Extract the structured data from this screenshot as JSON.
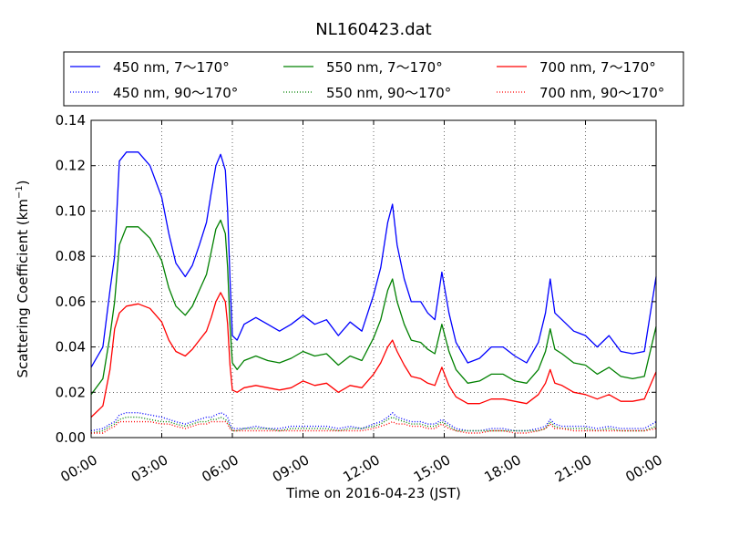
{
  "chart_data": {
    "type": "line",
    "title": "NL160423.dat",
    "xlabel": "Time on 2016-04-23 (JST)",
    "ylabel_main": "Scattering Coefficient (km",
    "ylabel_sup": "−1",
    "ylabel_close": ")",
    "xlim": [
      0,
      24
    ],
    "ylim": [
      0,
      0.14
    ],
    "grid": true,
    "legend_placement": "top-center",
    "x_ticks": [
      {
        "value": 0,
        "label": "00:00"
      },
      {
        "value": 3,
        "label": "03:00"
      },
      {
        "value": 6,
        "label": "06:00"
      },
      {
        "value": 9,
        "label": "09:00"
      },
      {
        "value": 12,
        "label": "12:00"
      },
      {
        "value": 15,
        "label": "15:00"
      },
      {
        "value": 18,
        "label": "18:00"
      },
      {
        "value": 21,
        "label": "21:00"
      },
      {
        "value": 24,
        "label": "00:00"
      }
    ],
    "y_ticks": [
      {
        "value": 0.0,
        "label": "0.00"
      },
      {
        "value": 0.02,
        "label": "0.02"
      },
      {
        "value": 0.04,
        "label": "0.04"
      },
      {
        "value": 0.06,
        "label": "0.06"
      },
      {
        "value": 0.08,
        "label": "0.08"
      },
      {
        "value": 0.1,
        "label": "0.10"
      },
      {
        "value": 0.12,
        "label": "0.12"
      },
      {
        "value": 0.14,
        "label": "0.14"
      }
    ],
    "x": [
      0,
      0.5,
      0.8,
      1.0,
      1.2,
      1.5,
      2.0,
      2.5,
      3.0,
      3.3,
      3.6,
      4.0,
      4.3,
      4.6,
      4.9,
      5.1,
      5.3,
      5.5,
      5.7,
      5.8,
      5.9,
      6.0,
      6.2,
      6.5,
      7.0,
      7.5,
      8.0,
      8.5,
      9.0,
      9.5,
      10.0,
      10.5,
      11.0,
      11.5,
      12.0,
      12.3,
      12.6,
      12.8,
      13.0,
      13.3,
      13.6,
      14.0,
      14.3,
      14.6,
      14.9,
      15.2,
      15.5,
      16.0,
      16.5,
      17.0,
      17.5,
      18.0,
      18.5,
      19.0,
      19.3,
      19.5,
      19.7,
      20.0,
      20.5,
      21.0,
      21.5,
      22.0,
      22.5,
      23.0,
      23.5,
      24.0
    ],
    "series": [
      {
        "name": "450 nm, 7～170°",
        "color": "#0000ff",
        "style": "solid",
        "values": [
          0.031,
          0.04,
          0.065,
          0.08,
          0.122,
          0.126,
          0.126,
          0.12,
          0.106,
          0.09,
          0.077,
          0.071,
          0.076,
          0.085,
          0.095,
          0.108,
          0.12,
          0.125,
          0.118,
          0.1,
          0.07,
          0.045,
          0.043,
          0.05,
          0.053,
          0.05,
          0.047,
          0.05,
          0.054,
          0.05,
          0.052,
          0.045,
          0.051,
          0.047,
          0.063,
          0.075,
          0.095,
          0.103,
          0.085,
          0.07,
          0.06,
          0.06,
          0.055,
          0.052,
          0.073,
          0.055,
          0.042,
          0.033,
          0.035,
          0.04,
          0.04,
          0.036,
          0.033,
          0.042,
          0.055,
          0.07,
          0.055,
          0.052,
          0.047,
          0.045,
          0.04,
          0.045,
          0.038,
          0.037,
          0.038,
          0.071
        ]
      },
      {
        "name": "550 nm, 7～170°",
        "color": "#008000",
        "style": "solid",
        "values": [
          0.019,
          0.026,
          0.045,
          0.06,
          0.085,
          0.093,
          0.093,
          0.088,
          0.078,
          0.066,
          0.058,
          0.054,
          0.058,
          0.065,
          0.072,
          0.082,
          0.092,
          0.096,
          0.09,
          0.075,
          0.05,
          0.033,
          0.03,
          0.034,
          0.036,
          0.034,
          0.033,
          0.035,
          0.038,
          0.036,
          0.037,
          0.032,
          0.036,
          0.034,
          0.044,
          0.052,
          0.065,
          0.07,
          0.06,
          0.05,
          0.043,
          0.042,
          0.039,
          0.037,
          0.05,
          0.038,
          0.03,
          0.024,
          0.025,
          0.028,
          0.028,
          0.025,
          0.024,
          0.03,
          0.038,
          0.048,
          0.039,
          0.037,
          0.033,
          0.032,
          0.028,
          0.031,
          0.027,
          0.026,
          0.027,
          0.049
        ]
      },
      {
        "name": "700 nm, 7～170°",
        "color": "#ff0000",
        "style": "solid",
        "values": [
          0.009,
          0.014,
          0.03,
          0.048,
          0.055,
          0.058,
          0.059,
          0.057,
          0.051,
          0.043,
          0.038,
          0.036,
          0.039,
          0.043,
          0.047,
          0.053,
          0.06,
          0.064,
          0.06,
          0.05,
          0.032,
          0.021,
          0.02,
          0.022,
          0.023,
          0.022,
          0.021,
          0.022,
          0.025,
          0.023,
          0.024,
          0.02,
          0.023,
          0.022,
          0.028,
          0.033,
          0.04,
          0.043,
          0.038,
          0.032,
          0.027,
          0.026,
          0.024,
          0.023,
          0.031,
          0.023,
          0.018,
          0.015,
          0.015,
          0.017,
          0.017,
          0.016,
          0.015,
          0.019,
          0.024,
          0.03,
          0.024,
          0.023,
          0.02,
          0.019,
          0.017,
          0.019,
          0.016,
          0.016,
          0.017,
          0.029
        ]
      },
      {
        "name": "450 nm, 90～170°",
        "color": "#0000ff",
        "style": "dotted",
        "values": [
          0.003,
          0.004,
          0.006,
          0.007,
          0.01,
          0.011,
          0.011,
          0.01,
          0.009,
          0.008,
          0.007,
          0.006,
          0.007,
          0.008,
          0.009,
          0.009,
          0.01,
          0.011,
          0.01,
          0.009,
          0.006,
          0.004,
          0.004,
          0.004,
          0.005,
          0.004,
          0.004,
          0.005,
          0.005,
          0.005,
          0.005,
          0.004,
          0.005,
          0.004,
          0.006,
          0.007,
          0.009,
          0.011,
          0.009,
          0.008,
          0.007,
          0.007,
          0.006,
          0.006,
          0.008,
          0.006,
          0.004,
          0.003,
          0.003,
          0.004,
          0.004,
          0.003,
          0.003,
          0.004,
          0.005,
          0.008,
          0.006,
          0.005,
          0.005,
          0.005,
          0.004,
          0.005,
          0.004,
          0.004,
          0.004,
          0.007
        ]
      },
      {
        "name": "550 nm, 90～170°",
        "color": "#008000",
        "style": "dotted",
        "values": [
          0.002,
          0.003,
          0.005,
          0.006,
          0.008,
          0.009,
          0.009,
          0.008,
          0.007,
          0.007,
          0.006,
          0.005,
          0.006,
          0.007,
          0.007,
          0.008,
          0.008,
          0.009,
          0.008,
          0.007,
          0.005,
          0.003,
          0.003,
          0.004,
          0.004,
          0.004,
          0.003,
          0.004,
          0.004,
          0.004,
          0.004,
          0.003,
          0.004,
          0.004,
          0.005,
          0.006,
          0.008,
          0.009,
          0.008,
          0.007,
          0.006,
          0.006,
          0.005,
          0.005,
          0.007,
          0.005,
          0.003,
          0.003,
          0.003,
          0.003,
          0.003,
          0.003,
          0.003,
          0.003,
          0.004,
          0.007,
          0.005,
          0.004,
          0.004,
          0.004,
          0.003,
          0.004,
          0.003,
          0.003,
          0.003,
          0.005
        ]
      },
      {
        "name": "700 nm, 90～170°",
        "color": "#ff0000",
        "style": "dotted",
        "values": [
          0.002,
          0.002,
          0.004,
          0.005,
          0.007,
          0.007,
          0.007,
          0.007,
          0.006,
          0.006,
          0.005,
          0.004,
          0.005,
          0.006,
          0.006,
          0.007,
          0.007,
          0.007,
          0.007,
          0.006,
          0.004,
          0.003,
          0.003,
          0.003,
          0.003,
          0.003,
          0.003,
          0.003,
          0.003,
          0.003,
          0.003,
          0.003,
          0.003,
          0.003,
          0.004,
          0.005,
          0.006,
          0.007,
          0.006,
          0.006,
          0.005,
          0.005,
          0.004,
          0.004,
          0.006,
          0.004,
          0.003,
          0.002,
          0.002,
          0.003,
          0.003,
          0.002,
          0.002,
          0.003,
          0.004,
          0.006,
          0.004,
          0.004,
          0.003,
          0.003,
          0.003,
          0.003,
          0.003,
          0.003,
          0.003,
          0.004
        ]
      }
    ]
  }
}
